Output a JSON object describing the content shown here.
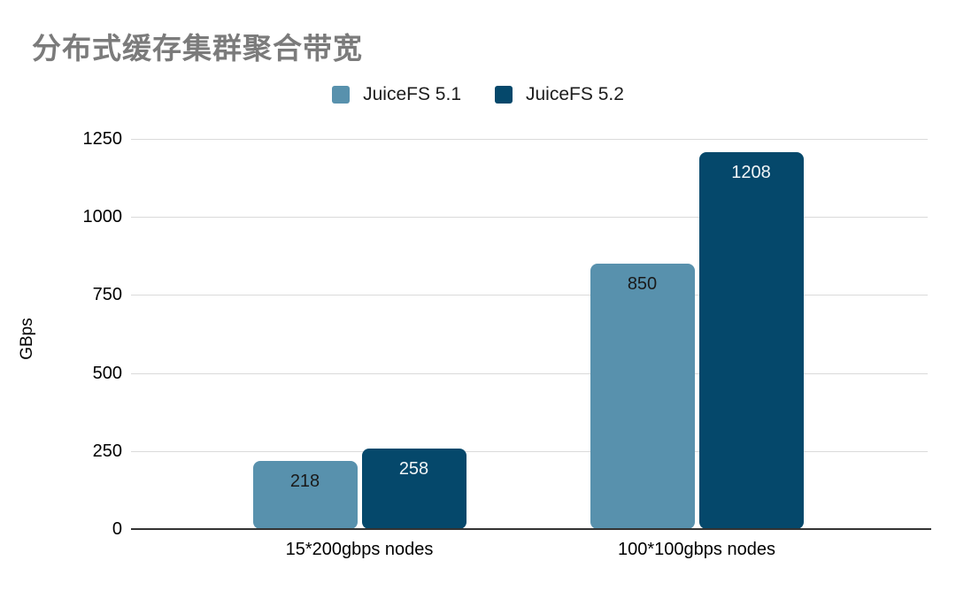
{
  "chart": {
    "background": "#ffffff",
    "title_color": "#7b7b7b",
    "gridline_color": "#dadada",
    "axis_line_color": "#333333"
  },
  "chart_data": {
    "type": "bar",
    "title": "分布式缓存集群聚合带宽",
    "xlabel": "",
    "ylabel": "GBps",
    "categories": [
      "15*200gbps nodes",
      "100*100gbps nodes"
    ],
    "series": [
      {
        "name": "JuiceFS 5.1",
        "values": [
          218,
          850
        ],
        "color": "#5891ad",
        "label_color": "#1a1a1a"
      },
      {
        "name": "JuiceFS 5.2",
        "values": [
          258,
          1208
        ],
        "color": "#05486b",
        "label_color": "#f2f6f8"
      }
    ],
    "ylim": [
      0,
      1250
    ],
    "yticks": [
      0,
      250,
      500,
      750,
      1000,
      1250
    ],
    "grid": true,
    "legend_position": "top",
    "value_labels": "inside-top"
  }
}
